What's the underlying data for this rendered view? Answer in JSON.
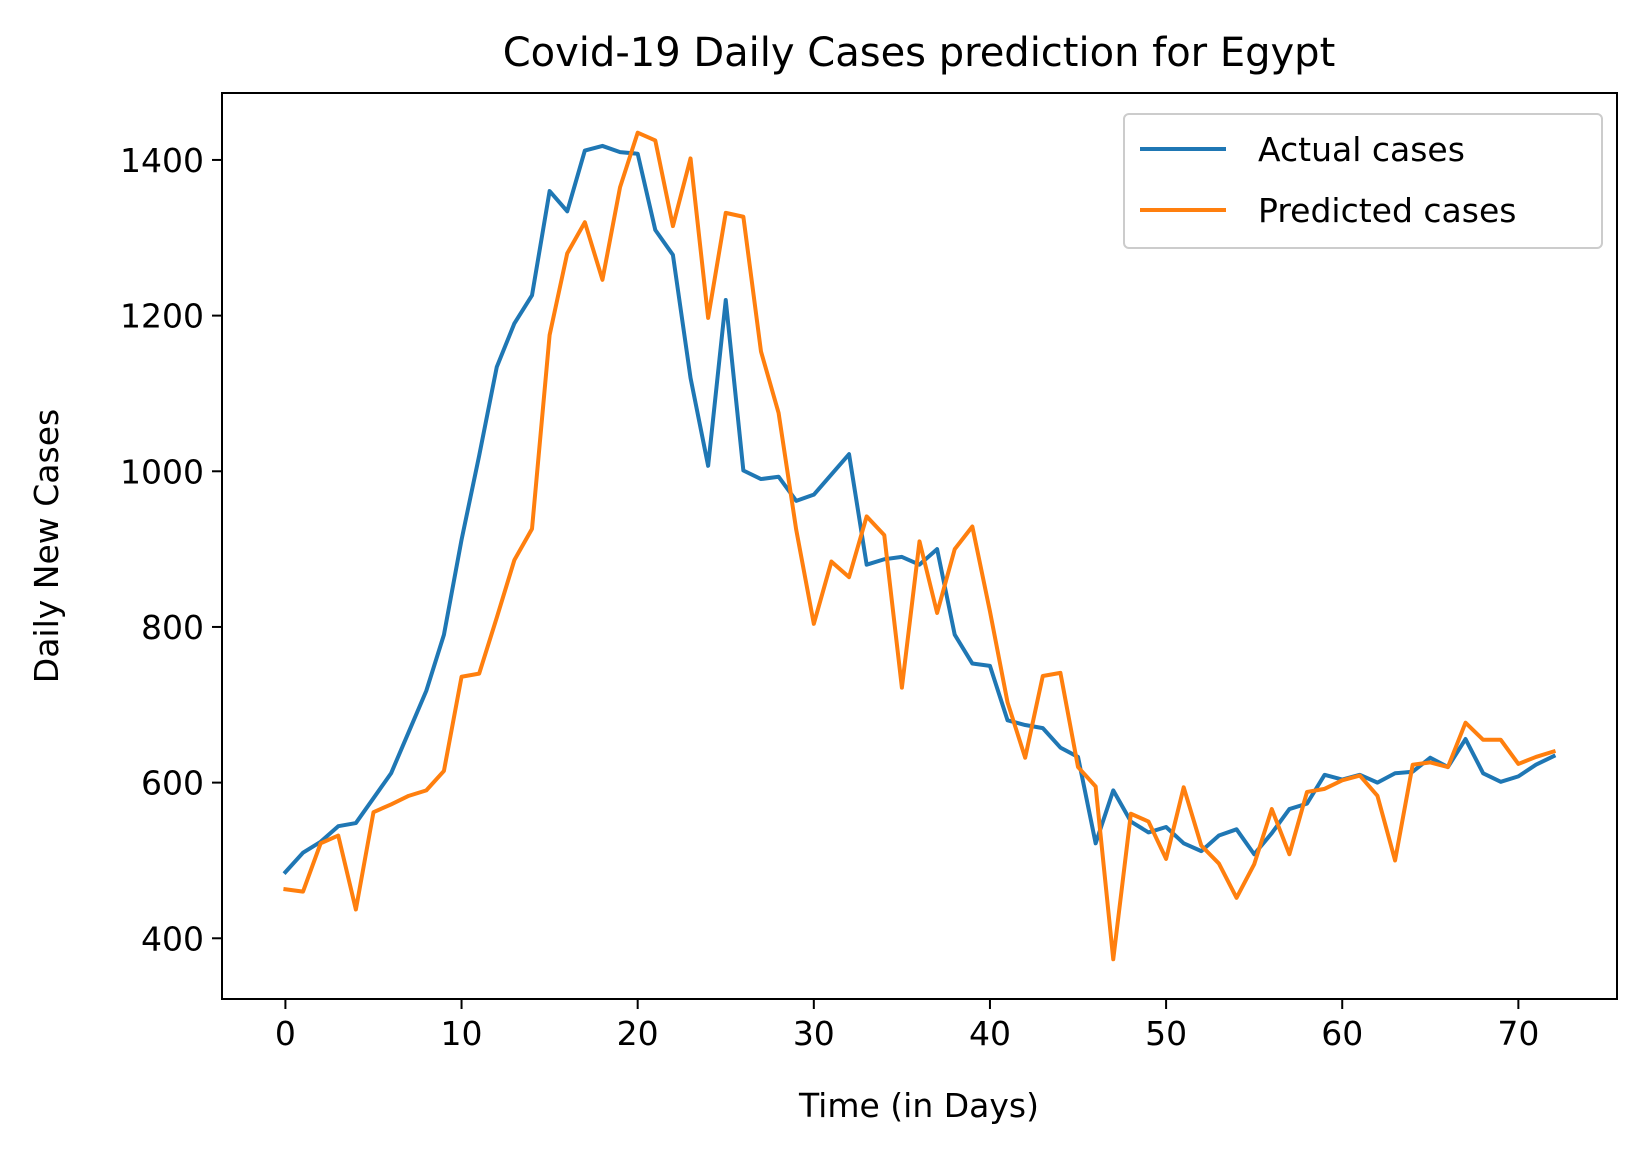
{
  "chart_data": {
    "type": "line",
    "title": "Covid-19 Daily Cases prediction for Egypt",
    "xlabel": "Time (in Days)",
    "ylabel": "Daily New Cases",
    "xlim": [
      -3.6,
      75.6
    ],
    "ylim": [
      322,
      1486
    ],
    "xticks": [
      0,
      10,
      20,
      30,
      40,
      50,
      60,
      70
    ],
    "yticks": [
      400,
      600,
      800,
      1000,
      1200,
      1400
    ],
    "grid": false,
    "legend_position": "top-right",
    "x": [
      0,
      1,
      2,
      3,
      4,
      5,
      6,
      7,
      8,
      9,
      10,
      11,
      12,
      13,
      14,
      15,
      16,
      17,
      18,
      19,
      20,
      21,
      22,
      23,
      24,
      25,
      26,
      27,
      28,
      29,
      30,
      31,
      32,
      33,
      34,
      35,
      36,
      37,
      38,
      39,
      40,
      41,
      42,
      43,
      44,
      45,
      46,
      47,
      48,
      49,
      50,
      51,
      52,
      53,
      54,
      55,
      56,
      57,
      58,
      59,
      60,
      61,
      62,
      63,
      64,
      65,
      66,
      67,
      68,
      69,
      70,
      71,
      72
    ],
    "series": [
      {
        "name": "Actual cases",
        "color": "#1f77b4",
        "values": [
          485,
          510,
          524,
          544,
          548,
          580,
          612,
          665,
          718,
          790,
          912,
          1020,
          1134,
          1190,
          1226,
          1360,
          1334,
          1412,
          1418,
          1410,
          1408,
          1310,
          1278,
          1120,
          1007,
          1220,
          1001,
          990,
          993,
          962,
          970,
          996,
          1022,
          880,
          887,
          890,
          880,
          900,
          790,
          753,
          750,
          680,
          674,
          670,
          645,
          633,
          522,
          590,
          550,
          536,
          543,
          522,
          512,
          532,
          540,
          508,
          535,
          566,
          573,
          610,
          604,
          610,
          600,
          612,
          614,
          632,
          620,
          656,
          612,
          601,
          608,
          623,
          634
        ]
      },
      {
        "name": "Predicted cases",
        "color": "#ff7f0e",
        "values": [
          463,
          460,
          522,
          532,
          437,
          562,
          572,
          583,
          590,
          615,
          736,
          740,
          812,
          886,
          926,
          1175,
          1280,
          1320,
          1246,
          1365,
          1435,
          1425,
          1315,
          1402,
          1197,
          1332,
          1327,
          1154,
          1075,
          925,
          804,
          884,
          864,
          942,
          918,
          722,
          910,
          818,
          900,
          929,
          820,
          703,
          632,
          737,
          741,
          620,
          595,
          373,
          560,
          550,
          502,
          594,
          519,
          496,
          452,
          495,
          566,
          508,
          588,
          592,
          603,
          609,
          583,
          500,
          623,
          626,
          620,
          677,
          655,
          655,
          624,
          633,
          640
        ]
      }
    ]
  }
}
